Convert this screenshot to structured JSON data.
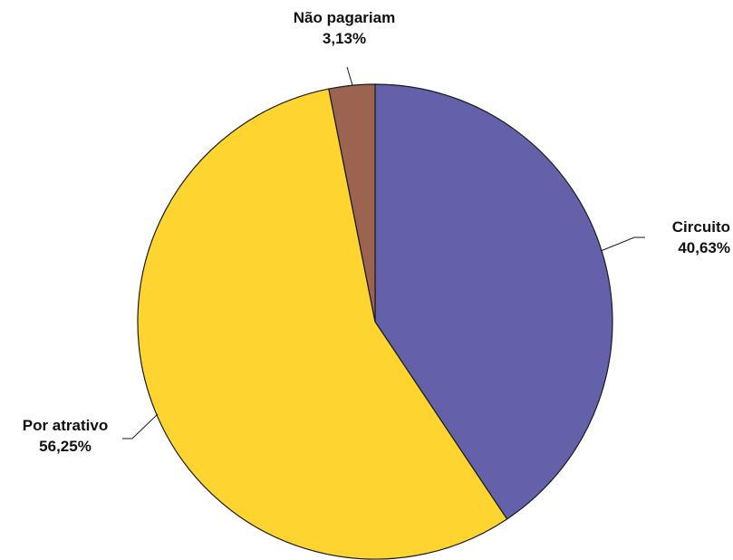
{
  "chart_data": {
    "type": "pie",
    "title": "",
    "start_angle_deg": 0,
    "direction": "clockwise",
    "slices": [
      {
        "name": "Circuito",
        "value": 40.63,
        "label": "40,63%",
        "color": "#6461ab"
      },
      {
        "name": "Por atrativo",
        "value": 56.25,
        "label": "56,25%",
        "color": "#fed530"
      },
      {
        "name": "Não pagariam",
        "value": 3.13,
        "label": "3,13%",
        "color": "#9c6350"
      }
    ]
  }
}
